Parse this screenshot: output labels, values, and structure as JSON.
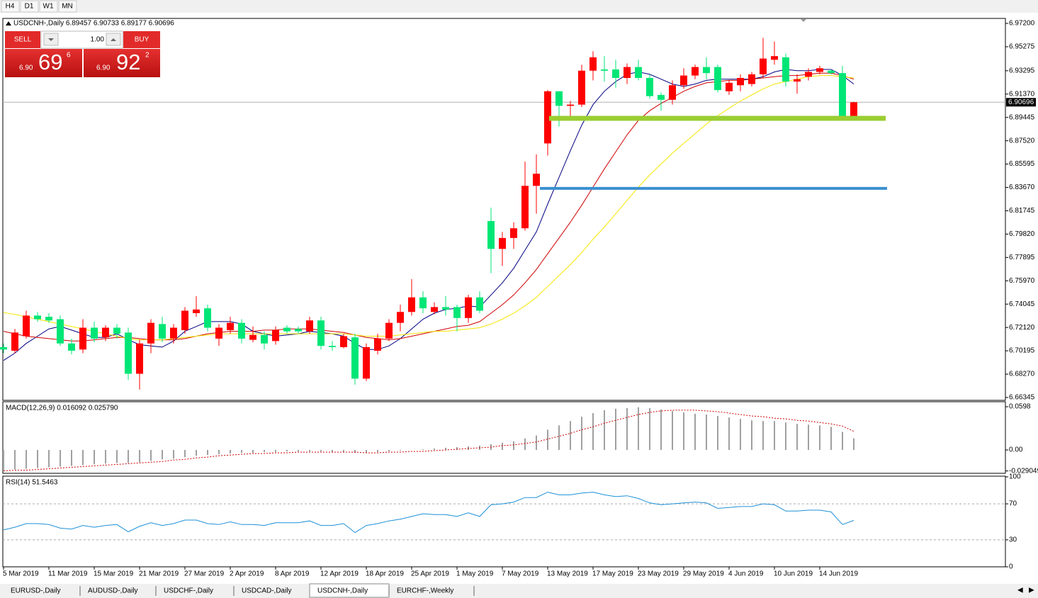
{
  "toolbar": {
    "timeframes": [
      "H4",
      "D1",
      "W1",
      "MN"
    ]
  },
  "trade_panel": {
    "sell": "SELL",
    "buy": "BUY",
    "volume": "1.00",
    "bid": {
      "prefix": "6.90",
      "big": "69",
      "small": "6"
    },
    "ask": {
      "prefix": "6.90",
      "big": "92",
      "small": "2"
    }
  },
  "tabs": [
    "EURUSD-,Daily",
    "AUDUSD-,Daily",
    "USDCHF-,Daily",
    "USDCAD-,Daily",
    "USDCNH-,Daily",
    "EURCHF-,Weekly"
  ],
  "active_tab": 4,
  "chart_data": [
    {
      "type": "candlestick",
      "title": "USDCNH-,Daily 6.89457 6.90733 6.89177 6.90696",
      "categories": [
        "5 Mar 2019",
        null,
        null,
        null,
        "11 Mar 2019",
        null,
        null,
        null,
        "15 Mar 2019",
        null,
        null,
        null,
        "21 Mar 2019",
        null,
        null,
        null,
        "27 Mar 2019",
        null,
        null,
        null,
        "2 Apr 2019",
        null,
        null,
        null,
        "8 Apr 2019",
        null,
        null,
        null,
        "12 Apr 2019",
        null,
        null,
        null,
        "18 Apr 2019",
        null,
        null,
        null,
        "25 Apr 2019",
        null,
        null,
        null,
        "1 May 2019",
        null,
        null,
        null,
        "7 May 2019",
        null,
        null,
        null,
        "13 May 2019",
        null,
        null,
        null,
        "17 May 2019",
        null,
        null,
        null,
        "23 May 2019",
        null,
        null,
        null,
        "29 May 2019",
        null,
        null,
        null,
        "4 Jun 2019",
        null,
        null,
        null,
        "10 Jun 2019",
        null,
        null,
        null,
        "14 Jun 2019",
        null,
        null,
        null
      ],
      "open": [
        6.705,
        6.702,
        6.714,
        6.731,
        6.73,
        6.728,
        6.708,
        6.703,
        6.721,
        6.713,
        6.721,
        6.717,
        6.683,
        6.708,
        6.724,
        6.712,
        6.719,
        6.733,
        6.737,
        6.712,
        6.719,
        6.725,
        6.711,
        6.715,
        6.71,
        6.721,
        6.72,
        6.718,
        6.727,
        6.706,
        6.705,
        6.713,
        6.679,
        6.702,
        6.712,
        6.725,
        6.734,
        6.746,
        6.734,
        6.738,
        6.738,
        6.729,
        6.746,
        6.809,
        6.786,
        6.795,
        6.803,
        6.838,
        6.873,
        6.916,
        6.904,
        6.905,
        6.933,
        6.934,
        6.934,
        6.927,
        6.936,
        6.927,
        6.913,
        6.909,
        6.921,
        6.929,
        6.936,
        6.936,
        6.916,
        6.921,
        6.922,
        6.93,
        6.942,
        6.944,
        6.924,
        6.928,
        6.932,
        6.933,
        6.931,
        6.89457
      ],
      "high": [
        6.708,
        6.72,
        6.735,
        6.734,
        6.733,
        6.731,
        6.712,
        6.728,
        6.726,
        6.723,
        6.724,
        6.721,
        6.711,
        6.728,
        6.73,
        6.724,
        6.738,
        6.747,
        6.74,
        6.724,
        6.73,
        6.728,
        6.722,
        6.718,
        6.722,
        6.723,
        6.722,
        6.73,
        6.73,
        6.71,
        6.716,
        6.716,
        6.708,
        6.716,
        6.728,
        6.74,
        6.761,
        6.751,
        6.742,
        6.747,
        6.74,
        6.748,
        6.751,
        6.82,
        6.8,
        6.808,
        6.858,
        6.864,
        6.917,
        6.916,
        6.908,
        6.938,
        6.949,
        6.945,
        6.942,
        6.939,
        6.942,
        6.93,
        6.915,
        6.925,
        6.935,
        6.938,
        6.944,
        6.938,
        6.925,
        6.93,
        6.932,
        6.96,
        6.957,
        6.947,
        6.93,
        6.935,
        6.937,
        6.934,
        6.937,
        6.90733
      ],
      "low": [
        6.7,
        6.7,
        6.712,
        6.726,
        6.725,
        6.706,
        6.699,
        6.7,
        6.709,
        6.71,
        6.712,
        6.678,
        6.67,
        6.7,
        6.709,
        6.708,
        6.716,
        6.73,
        6.718,
        6.706,
        6.716,
        6.708,
        6.709,
        6.703,
        6.707,
        6.716,
        6.716,
        6.716,
        6.703,
        6.702,
        6.704,
        6.674,
        6.677,
        6.699,
        6.71,
        6.718,
        6.731,
        6.733,
        6.732,
        6.731,
        6.718,
        6.725,
        6.733,
        6.766,
        6.772,
        6.786,
        6.801,
        6.815,
        6.863,
        6.887,
        6.894,
        6.903,
        6.925,
        6.924,
        6.919,
        6.922,
        6.925,
        6.91,
        6.9,
        6.905,
        6.918,
        6.926,
        6.926,
        6.915,
        6.913,
        6.916,
        6.92,
        6.927,
        6.938,
        6.92,
        6.914,
        6.925,
        6.93,
        6.93,
        6.893,
        6.89177
      ],
      "close": [
        6.703,
        6.717,
        6.731,
        6.728,
        6.727,
        6.708,
        6.702,
        6.721,
        6.712,
        6.721,
        6.716,
        6.683,
        6.708,
        6.725,
        6.712,
        6.721,
        6.735,
        6.736,
        6.721,
        6.721,
        6.725,
        6.712,
        6.715,
        6.708,
        6.719,
        6.718,
        6.718,
        6.727,
        6.706,
        6.705,
        6.714,
        6.679,
        6.705,
        6.712,
        6.725,
        6.734,
        6.746,
        6.737,
        6.738,
        6.736,
        6.729,
        6.746,
        6.735,
        6.786,
        6.795,
        6.803,
        6.838,
        6.848,
        6.916,
        6.904,
        6.905,
        6.933,
        6.944,
        6.933,
        6.927,
        6.936,
        6.927,
        6.912,
        6.909,
        6.921,
        6.929,
        6.936,
        6.931,
        6.917,
        6.923,
        6.927,
        6.93,
        6.943,
        6.945,
        6.924,
        6.926,
        6.932,
        6.935,
        6.931,
        6.894,
        6.90696
      ],
      "up_color": "#ff0000",
      "down_color": "#00e676",
      "series": [
        {
          "color": "#000080",
          "values": [
            6.694,
            6.7,
            6.708,
            6.714,
            6.72,
            6.722,
            6.719,
            6.716,
            6.713,
            6.713,
            6.716,
            6.711,
            6.707,
            6.706,
            6.705,
            6.71,
            6.718,
            6.722,
            6.726,
            6.726,
            6.726,
            6.724,
            6.718,
            6.716,
            6.714,
            6.715,
            6.716,
            6.718,
            6.717,
            6.716,
            6.714,
            6.708,
            6.703,
            6.703,
            6.706,
            6.712,
            6.72,
            6.728,
            6.733,
            6.736,
            6.737,
            6.739,
            6.738,
            6.748,
            6.758,
            6.77,
            6.785,
            6.8,
            6.823,
            6.845,
            6.867,
            6.888,
            6.905,
            6.916,
            6.924,
            6.93,
            6.932,
            6.93,
            6.926,
            6.922,
            6.92,
            6.922,
            6.925,
            6.926,
            6.926,
            6.926,
            6.926,
            6.928,
            6.932,
            6.934,
            6.933,
            6.933,
            6.934,
            6.934,
            6.929,
            6.922
          ]
        },
        {
          "color": "#d00000",
          "values": [
            6.718,
            6.716,
            6.714,
            6.713,
            6.712,
            6.711,
            6.71,
            6.71,
            6.711,
            6.712,
            6.713,
            6.713,
            6.712,
            6.711,
            6.711,
            6.711,
            6.712,
            6.714,
            6.716,
            6.717,
            6.718,
            6.718,
            6.718,
            6.719,
            6.719,
            6.72,
            6.72,
            6.72,
            6.719,
            6.718,
            6.717,
            6.715,
            6.713,
            6.712,
            6.711,
            6.712,
            6.714,
            6.716,
            6.718,
            6.72,
            6.722,
            6.723,
            6.726,
            6.733,
            6.74,
            6.748,
            6.758,
            6.769,
            6.782,
            6.795,
            6.808,
            6.822,
            6.837,
            6.852,
            6.866,
            6.88,
            6.892,
            6.9,
            6.906,
            6.911,
            6.916,
            6.92,
            6.923,
            6.924,
            6.925,
            6.925,
            6.926,
            6.927,
            6.928,
            6.929,
            6.929,
            6.93,
            6.931,
            6.931,
            6.929,
            6.926
          ]
        },
        {
          "color": "#f5e600",
          "values": [
            6.7335,
            6.732,
            6.73,
            6.728,
            6.726,
            6.724,
            6.722,
            6.72,
            6.718,
            6.716,
            6.714,
            6.712,
            6.711,
            6.711,
            6.711,
            6.712,
            6.713,
            6.714,
            6.715,
            6.716,
            6.716,
            6.716,
            6.716,
            6.716,
            6.716,
            6.716,
            6.716,
            6.716,
            6.716,
            6.716,
            6.716,
            6.715,
            6.714,
            6.714,
            6.714,
            6.715,
            6.716,
            6.717,
            6.718,
            6.718,
            6.719,
            6.72,
            6.721,
            6.724,
            6.728,
            6.733,
            6.739,
            6.746,
            6.755,
            6.764,
            6.773,
            6.783,
            6.794,
            6.804,
            6.815,
            6.826,
            6.837,
            6.847,
            6.856,
            6.865,
            6.873,
            6.881,
            6.889,
            6.896,
            6.902,
            6.908,
            6.913,
            6.918,
            6.922,
            6.924,
            6.926,
            6.928,
            6.929,
            6.929,
            6.928,
            6.927
          ]
        }
      ],
      "levels": [
        {
          "value": 6.8937,
          "color": "#9acd32"
        },
        {
          "value": 6.8359,
          "color": "#3a8fd0"
        }
      ],
      "current_price": 6.90696,
      "ylim": [
        6.6611,
        6.9761
      ],
      "yticks": [
        {
          "value": 6.972,
          "label": "6.97200"
        },
        6.95275,
        6.93295,
        {
          "value": 6.9137,
          "label": "6.91370"
        },
        6.89445,
        {
          "value": 6.8752,
          "label": "6.87520"
        },
        6.85595,
        {
          "value": 6.8367,
          "label": "6.83670"
        },
        6.81745,
        {
          "value": 6.7982,
          "label": "6.79820"
        },
        6.77895,
        {
          "value": 6.7597,
          "label": "6.75970"
        },
        6.74045,
        {
          "value": 6.7212,
          "label": "6.72120"
        },
        6.70195,
        {
          "value": 6.6827,
          "label": "6.68270"
        },
        6.66345
      ]
    },
    {
      "type": "macd",
      "title": "MACD(12,26,9) 0.016092 0.025790",
      "histogram": {
        "color": "#a0a0a0",
        "values": [
          -0.028,
          -0.027,
          -0.026,
          -0.025,
          -0.024,
          -0.023,
          -0.022,
          -0.021,
          -0.02,
          -0.019,
          -0.018,
          -0.018,
          -0.017,
          -0.015,
          -0.013,
          -0.012,
          -0.01,
          -0.008,
          -0.007,
          -0.006,
          -0.005,
          -0.004,
          -0.004,
          -0.003,
          -0.003,
          -0.002,
          -0.002,
          -0.002,
          -0.002,
          -0.003,
          -0.003,
          -0.004,
          -0.004,
          -0.003,
          -0.002,
          -0.001,
          0.0,
          0.001,
          0.002,
          0.003,
          0.004,
          0.005,
          0.006,
          0.008,
          0.01,
          0.012,
          0.016,
          0.02,
          0.028,
          0.034,
          0.04,
          0.046,
          0.051,
          0.055,
          0.057,
          0.058,
          0.059,
          0.058,
          0.056,
          0.054,
          0.052,
          0.05,
          0.049,
          0.047,
          0.045,
          0.043,
          0.041,
          0.04,
          0.04,
          0.038,
          0.036,
          0.035,
          0.034,
          0.032,
          0.025,
          0.016092
        ]
      },
      "signal": {
        "color": "#d00000",
        "values": [
          -0.029,
          -0.028,
          -0.028,
          -0.027,
          -0.026,
          -0.025,
          -0.024,
          -0.023,
          -0.022,
          -0.021,
          -0.02,
          -0.019,
          -0.018,
          -0.017,
          -0.016,
          -0.014,
          -0.013,
          -0.011,
          -0.01,
          -0.008,
          -0.007,
          -0.006,
          -0.005,
          -0.005,
          -0.004,
          -0.004,
          -0.003,
          -0.003,
          -0.003,
          -0.003,
          -0.003,
          -0.003,
          -0.004,
          -0.004,
          -0.003,
          -0.003,
          -0.002,
          -0.002,
          -0.001,
          0.0,
          0.001,
          0.002,
          0.003,
          0.004,
          0.006,
          0.007,
          0.009,
          0.011,
          0.015,
          0.019,
          0.023,
          0.028,
          0.032,
          0.037,
          0.041,
          0.045,
          0.049,
          0.052,
          0.054,
          0.055,
          0.055,
          0.055,
          0.054,
          0.053,
          0.051,
          0.049,
          0.047,
          0.046,
          0.044,
          0.043,
          0.041,
          0.04,
          0.038,
          0.036,
          0.033,
          0.02579
        ]
      },
      "ylim": [
        -0.0323,
        0.0667
      ],
      "yticks": [
        0.0598,
        {
          "value": 0,
          "label": "0.00"
        },
        -0.029049
      ]
    },
    {
      "type": "line",
      "title": "RSI(14) 51.5463",
      "color": "#1e90d8",
      "values": [
        41,
        44,
        48,
        48,
        47,
        43,
        42,
        46,
        44,
        46,
        47,
        39,
        45,
        49,
        46,
        48,
        52,
        52,
        48,
        47,
        50,
        47,
        47,
        46,
        49,
        49,
        49,
        51,
        46,
        46,
        48,
        38,
        46,
        48,
        51,
        53,
        56,
        59,
        58,
        58,
        56,
        60,
        56,
        69,
        70,
        72,
        77,
        77,
        83,
        80,
        80,
        82,
        83,
        80,
        78,
        79,
        76,
        71,
        69,
        70,
        71,
        72,
        71,
        65,
        66,
        67,
        67,
        70,
        69,
        62,
        62,
        63,
        63,
        61,
        47,
        51.5463
      ],
      "ylim": [
        0,
        100
      ],
      "yticks": [
        100,
        70,
        30,
        0
      ],
      "levels": [
        70,
        30
      ]
    }
  ]
}
